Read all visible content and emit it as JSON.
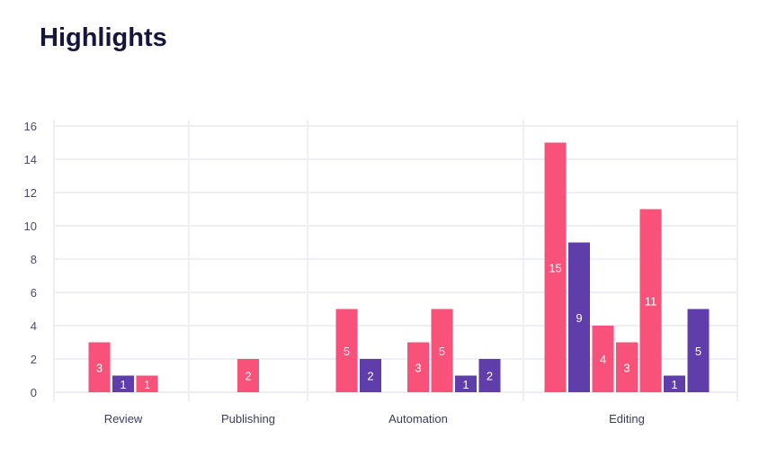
{
  "title": "Highlights",
  "colors": {
    "pink": "#F9527A",
    "purple": "#5F3DAA",
    "grid": "#EEEEF5"
  },
  "chart_data": {
    "type": "bar",
    "title": "Highlights",
    "ylim": [
      0,
      16
    ],
    "yticks": [
      "0",
      "2",
      "4",
      "6",
      "8",
      "10",
      "12",
      "14",
      "16"
    ],
    "grid": true,
    "categories": [
      "Review",
      "Publishing",
      "Automation",
      "Editing"
    ],
    "groups": [
      {
        "name": "Review",
        "bars": [
          {
            "value": 3,
            "color": "pink"
          },
          {
            "value": 1,
            "color": "purple"
          },
          {
            "value": 1,
            "color": "pink"
          }
        ]
      },
      {
        "name": "Publishing",
        "bars": [
          {
            "value": 2,
            "color": "pink"
          }
        ]
      },
      {
        "name": "Automation",
        "bars": [
          {
            "value": 5,
            "color": "pink"
          },
          {
            "value": 2,
            "color": "purple"
          },
          null,
          {
            "value": 3,
            "color": "pink"
          },
          {
            "value": 5,
            "color": "pink"
          },
          {
            "value": 1,
            "color": "purple"
          },
          {
            "value": 2,
            "color": "purple"
          }
        ]
      },
      {
        "name": "Editing",
        "bars": [
          {
            "value": 15,
            "color": "pink"
          },
          {
            "value": 9,
            "color": "purple"
          },
          {
            "value": 4,
            "color": "pink"
          },
          {
            "value": 3,
            "color": "pink"
          },
          {
            "value": 11,
            "color": "pink"
          },
          {
            "value": 1,
            "color": "purple"
          },
          {
            "value": 5,
            "color": "purple"
          }
        ]
      }
    ]
  }
}
